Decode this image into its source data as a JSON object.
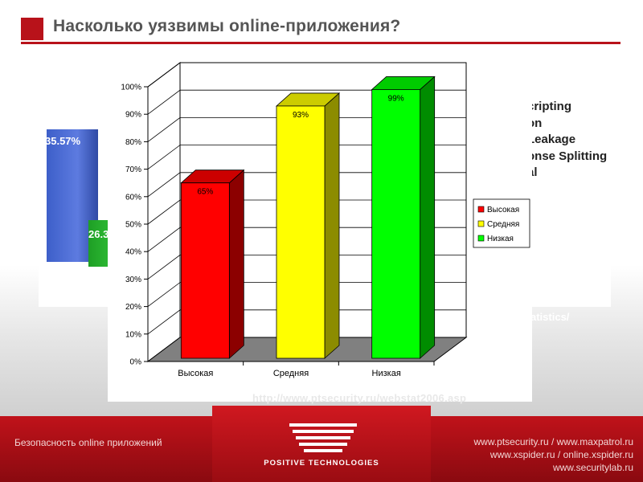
{
  "title": "Насколько уязвимы online-приложения?",
  "background_slide": {
    "blue_label": "35.57%",
    "green_label": "26.3",
    "legend_fragments": [
      "cripting",
      "on",
      "Leakage",
      "onse Splitting",
      "al"
    ],
    "stats_fragment": "atistics/"
  },
  "url": "http://www.ptsecurity.ru/webstat2006.asp",
  "footer": {
    "left": "Безопасность online приложений",
    "links": [
      "www.ptsecurity.ru / www.maxpatrol.ru",
      "www.xspider.ru / online.xspider.ru",
      "www.securitylab.ru"
    ],
    "logo_text": "POSITIVE TECHNOLOGIES"
  },
  "colors": {
    "accent": "#b8121a",
    "high": "#ff0000",
    "medium": "#ffff00",
    "low": "#00ff00"
  },
  "chart_data": {
    "type": "bar",
    "categories": [
      "Высокая",
      "Средняя",
      "Низкая"
    ],
    "values": [
      65,
      93,
      99
    ],
    "data_labels": [
      "65%",
      "93%",
      "99%"
    ],
    "yticks": [
      "0%",
      "10%",
      "20%",
      "30%",
      "40%",
      "50%",
      "60%",
      "70%",
      "80%",
      "90%",
      "100%"
    ],
    "ylim": [
      0,
      100
    ],
    "grid": true,
    "legend": [
      "Высокая",
      "Средняя",
      "Низкая"
    ],
    "legend_position": "right",
    "bar_colors": [
      "#ff0000",
      "#ffff00",
      "#00ff00"
    ]
  }
}
